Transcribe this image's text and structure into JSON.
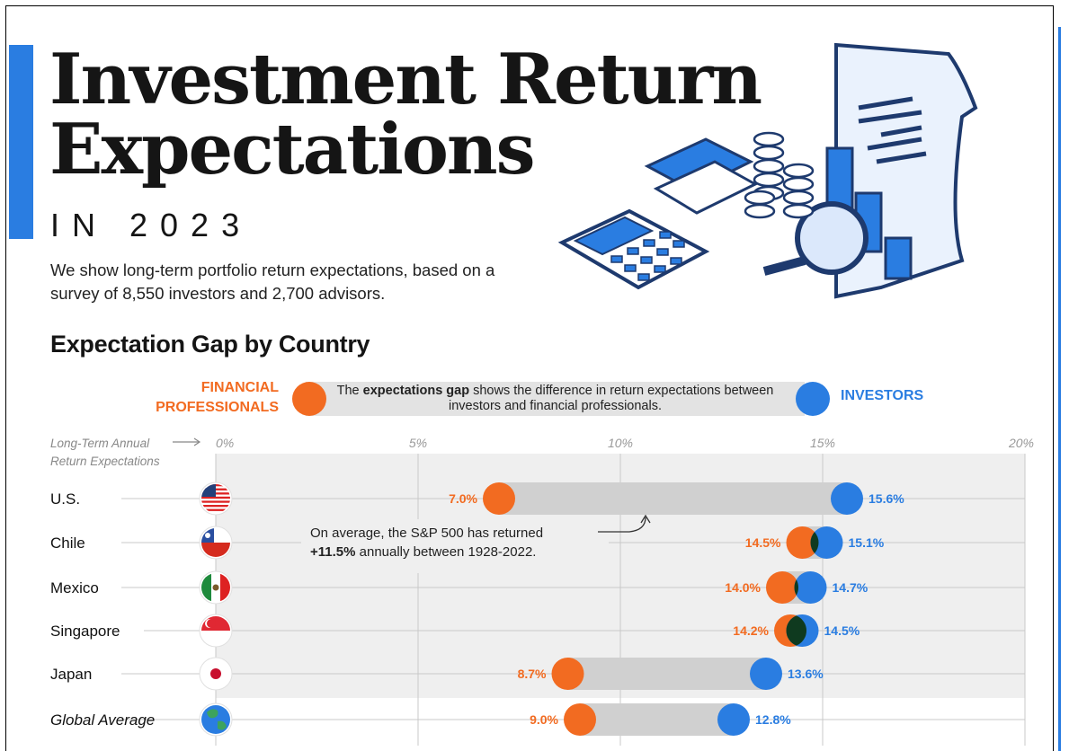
{
  "header": {
    "title_line1": "Investment Return",
    "title_line2": "Expectations",
    "year": "IN 2023",
    "description": "We show long-term portfolio return expectations, based on a survey of 8,550 investors and 2,700 advisors.",
    "section_title": "Expectation Gap by Country"
  },
  "legend": {
    "financial_professionals_line1": "FINANCIAL",
    "financial_professionals_line2": "PROFESSIONALS",
    "investors": "INVESTORS",
    "text_pre": "The ",
    "text_bold": "expectations gap",
    "text_post": " shows the difference in return expectations between investors and financial professionals."
  },
  "axis": {
    "label_line1": "Long-Term Annual",
    "label_line2": "Return Expectations"
  },
  "annotation": {
    "line1": "On average, the S&P 500 has returned",
    "bold": "+11.5%",
    "line2_rest": " annually between 1928-2022."
  },
  "colors": {
    "financial_professionals": "#f26b21",
    "investors": "#2a7de1",
    "overlap": "#0f3a1f",
    "band": "#d0d0d0",
    "panel": "#efefef"
  },
  "chart_data": {
    "type": "dot-range",
    "x_ticks": [
      "0%",
      "5%",
      "10%",
      "15%",
      "20%"
    ],
    "xlim": [
      0,
      20
    ],
    "grid": true,
    "series": [
      {
        "name": "FINANCIAL PROFESSIONALS",
        "values": [
          7.0,
          14.5,
          14.0,
          14.2,
          8.7,
          9.0
        ]
      },
      {
        "name": "INVESTORS",
        "values": [
          15.6,
          15.1,
          14.7,
          14.5,
          13.6,
          12.8
        ]
      }
    ],
    "categories": [
      "U.S.",
      "Chile",
      "Mexico",
      "Singapore",
      "Japan",
      "Global Average"
    ],
    "flags": [
      "us-flag-icon",
      "chile-flag-icon",
      "mexico-flag-icon",
      "singapore-flag-icon",
      "japan-flag-icon",
      "globe-icon"
    ],
    "labels_fp": [
      "7.0%",
      "14.5%",
      "14.0%",
      "14.2%",
      "8.7%",
      "9.0%"
    ],
    "labels_inv": [
      "15.6%",
      "15.1%",
      "14.7%",
      "14.5%",
      "13.6%",
      "12.8%"
    ]
  }
}
